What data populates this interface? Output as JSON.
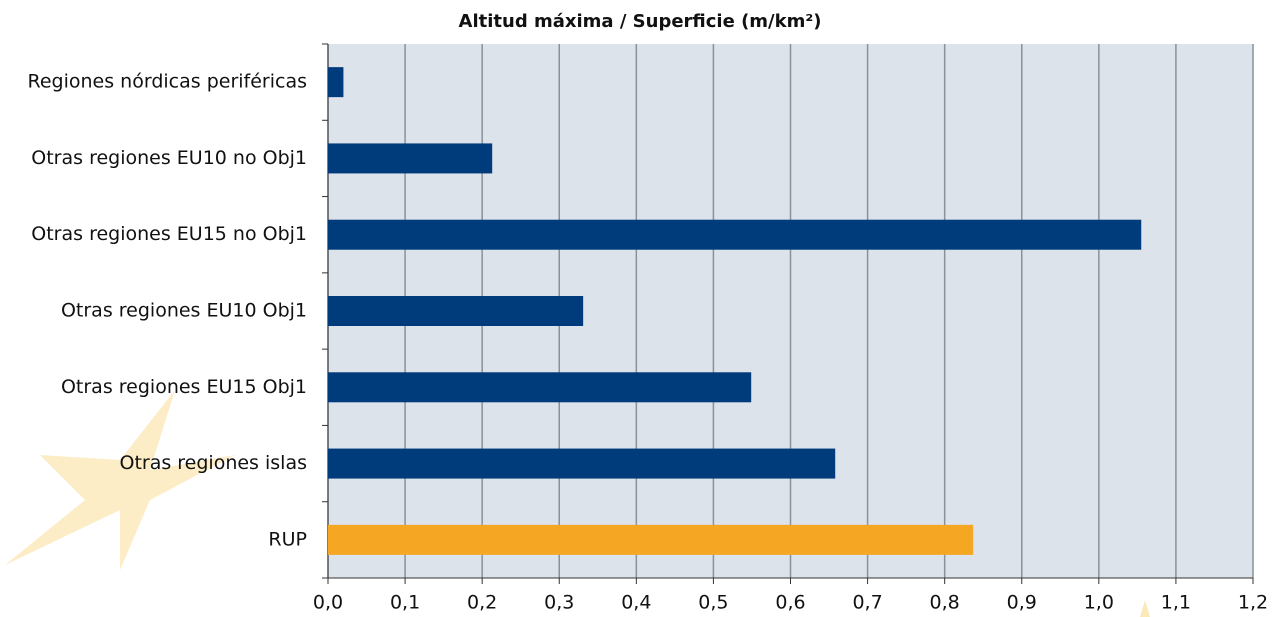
{
  "chart_data": {
    "type": "hbar",
    "title": "Altitud máxima / Superficie (m/km²)",
    "categories": [
      "Regiones nórdicas periféricas",
      "Otras regiones EU10 no Obj1",
      "Otras regiones EU15 no Obj1",
      "Otras regiones EU10 Obj1",
      "Otras regiones EU15 Obj1",
      "Otras regiones islas",
      "RUP"
    ],
    "values": [
      0.02,
      0.213,
      1.055,
      0.331,
      0.549,
      0.658,
      0.837
    ],
    "colors": [
      "#003b7b",
      "#003b7b",
      "#003b7b",
      "#003b7b",
      "#003b7b",
      "#003b7b",
      "#f5a623"
    ],
    "xlim": [
      0,
      1.2
    ],
    "xticks": [
      {
        "value": 0,
        "label": "0,0"
      },
      {
        "value": 0.1,
        "label": "0,1"
      },
      {
        "value": 0.2,
        "label": "0,2"
      },
      {
        "value": 0.3,
        "label": "0,3"
      },
      {
        "value": 0.4,
        "label": "0,4"
      },
      {
        "value": 0.5,
        "label": "0,5"
      },
      {
        "value": 0.6,
        "label": "0,6"
      },
      {
        "value": 0.7,
        "label": "0,7"
      },
      {
        "value": 0.8,
        "label": "0,8"
      },
      {
        "value": 0.9,
        "label": "0,9"
      },
      {
        "value": 1.0,
        "label": "1,0"
      },
      {
        "value": 1.1,
        "label": "1,1"
      },
      {
        "value": 1.2,
        "label": "1,2"
      }
    ],
    "grid": true
  }
}
